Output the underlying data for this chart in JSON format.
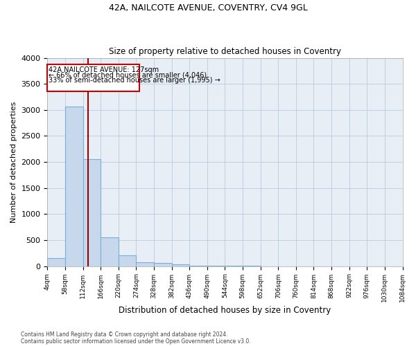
{
  "title1": "42A, NAILCOTE AVENUE, COVENTRY, CV4 9GL",
  "title2": "Size of property relative to detached houses in Coventry",
  "xlabel": "Distribution of detached houses by size in Coventry",
  "ylabel": "Number of detached properties",
  "footnote1": "Contains HM Land Registry data © Crown copyright and database right 2024.",
  "footnote2": "Contains public sector information licensed under the Open Government Licence v3.0.",
  "bin_edges": [
    4,
    58,
    112,
    166,
    220,
    274,
    328,
    382,
    436,
    490,
    544,
    598,
    652,
    706,
    760,
    814,
    868,
    922,
    976,
    1030,
    1084
  ],
  "bar_heights": [
    150,
    3060,
    2060,
    550,
    205,
    75,
    55,
    40,
    10,
    5,
    3,
    2,
    1,
    1,
    1,
    0,
    0,
    0,
    0,
    0
  ],
  "bar_color": "#c8d8ec",
  "bar_edge_color": "#7aafd4",
  "property_size": 127,
  "vline_color": "#990000",
  "annotation_title": "42A NAILCOTE AVENUE: 127sqm",
  "annotation_line1": "← 66% of detached houses are smaller (4,046)",
  "annotation_line2": "33% of semi-detached houses are larger (1,995) →",
  "annotation_box_color": "#cc0000",
  "ylim": [
    0,
    4000
  ],
  "grid_color": "#c0d0e0",
  "background_color": "#e8eef6"
}
